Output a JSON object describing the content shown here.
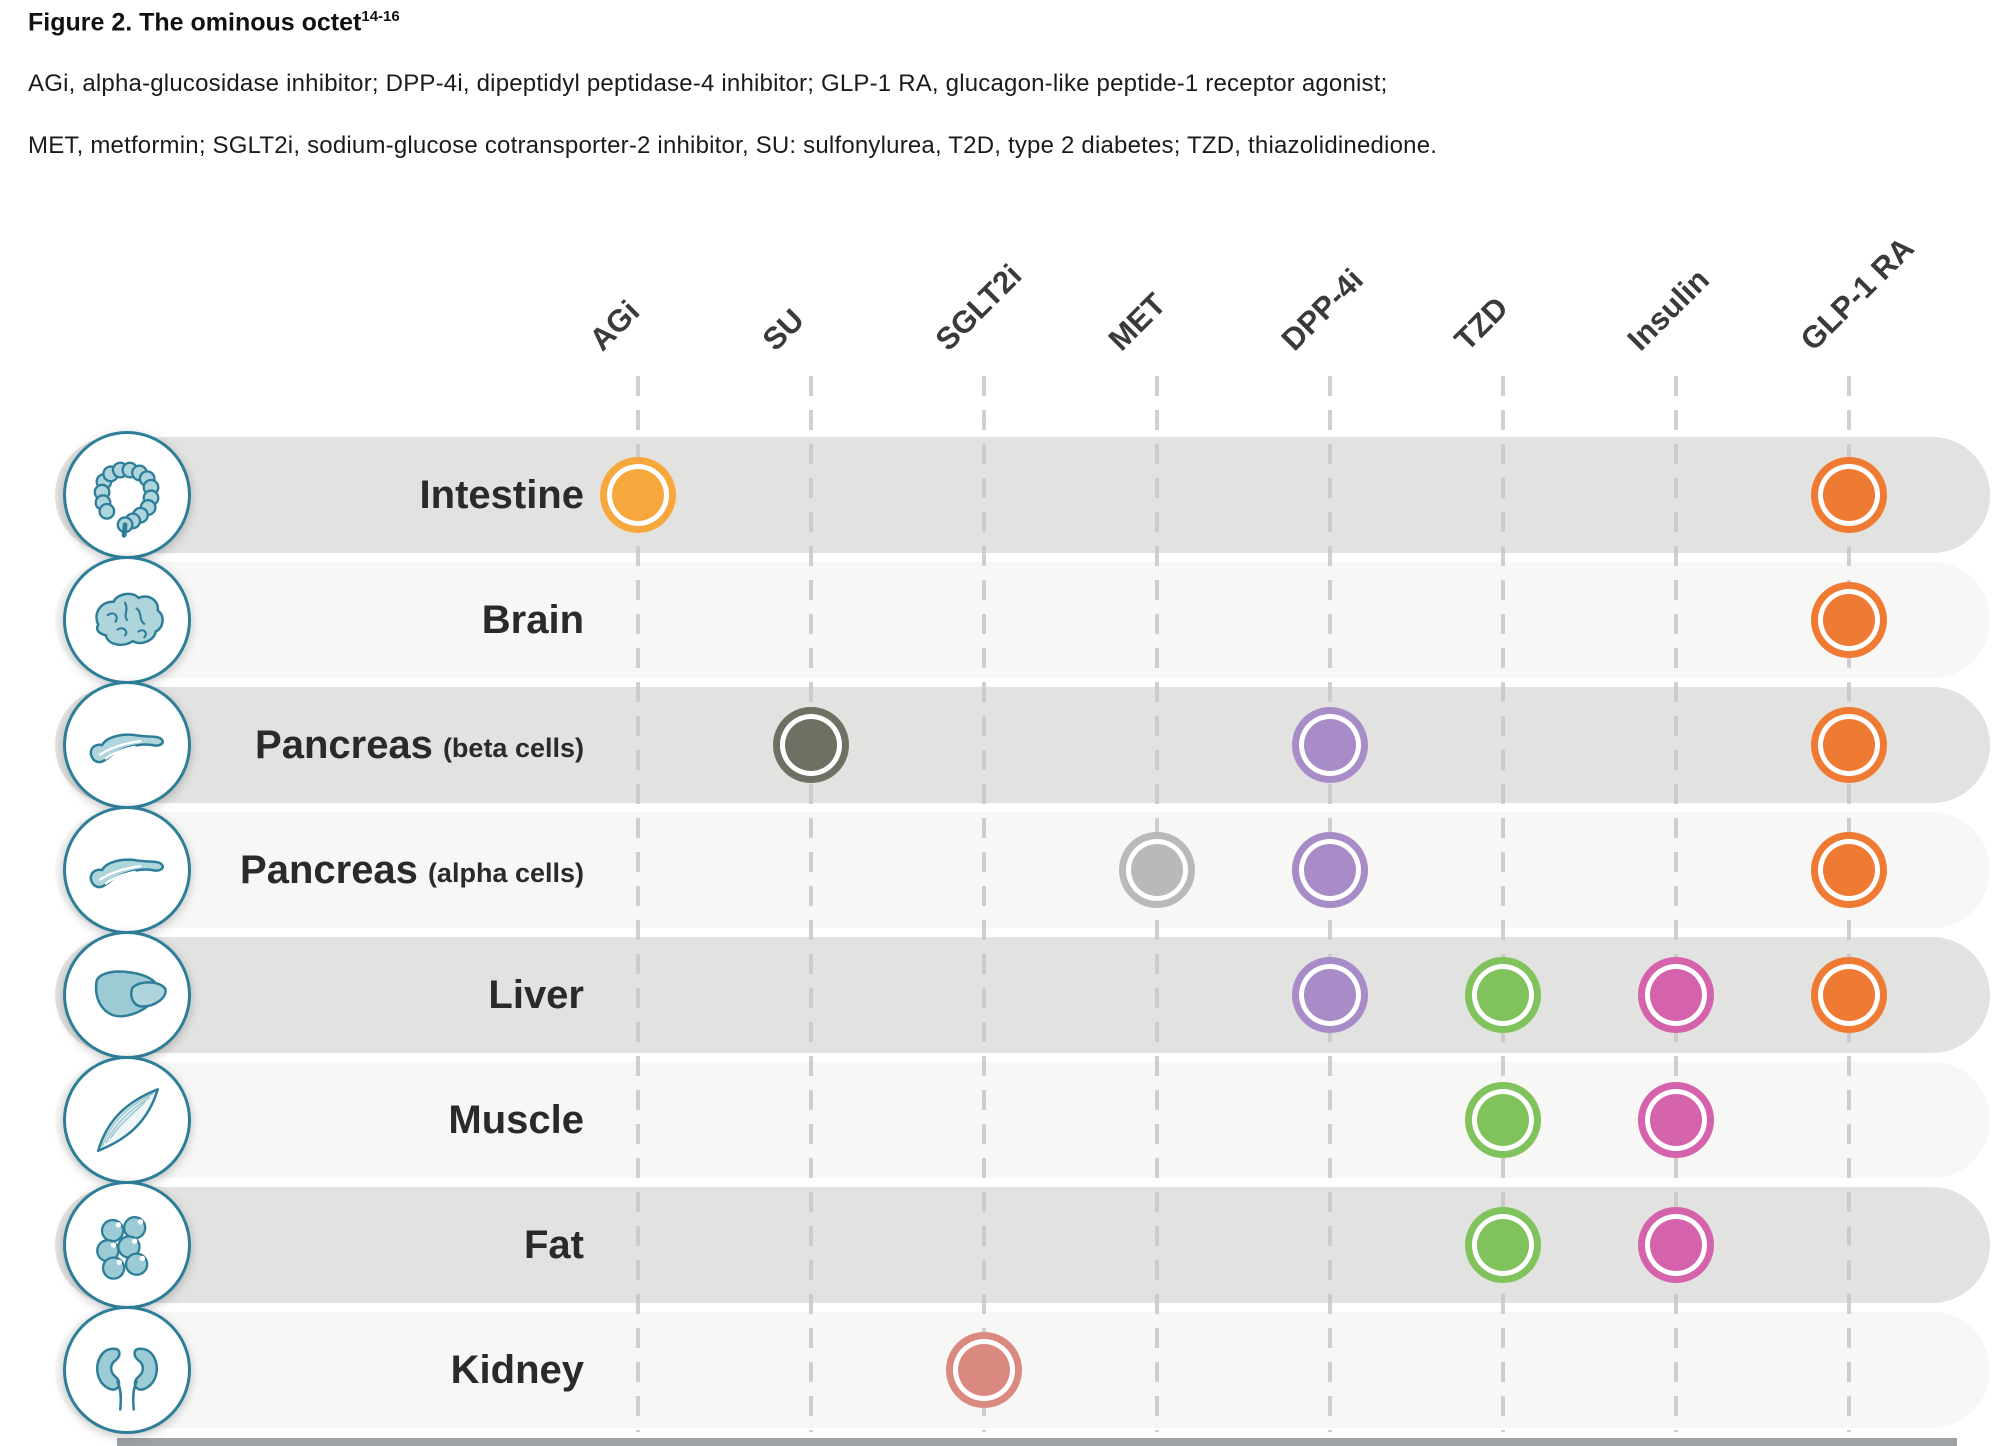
{
  "header": {
    "title": "Figure 2. The ominous octet",
    "reference": "14-16",
    "abbrev_line1": "AGi, alpha-glucosidase inhibitor; DPP-4i, dipeptidyl peptidase-4 inhibitor; GLP-1 RA, glucagon-like peptide-1 receptor agonist;",
    "abbrev_line2": "MET, metformin; SGLT2i, sodium-glucose cotransporter-2 inhibitor, SU: sulfonylurea, T2D, type 2 diabetes; TZD, thiazolidinedione."
  },
  "chart_data": {
    "type": "table",
    "title": "Figure 2. The ominous octet",
    "columns": [
      "AGi",
      "SU",
      "SGLT2i",
      "MET",
      "DPP-4i",
      "TZD",
      "Insulin",
      "GLP-1 RA"
    ],
    "rows": [
      {
        "organ": "Intestine",
        "sub": "",
        "icon": "intestine-icon",
        "hits": {
          "AGi": "amber",
          "GLP-1 RA": "orange"
        }
      },
      {
        "organ": "Brain",
        "sub": "",
        "icon": "brain-icon",
        "hits": {
          "GLP-1 RA": "orange"
        }
      },
      {
        "organ": "Pancreas",
        "sub": "(beta cells)",
        "icon": "pancreas-icon",
        "hits": {
          "SU": "olive",
          "DPP-4i": "purple",
          "GLP-1 RA": "orange"
        }
      },
      {
        "organ": "Pancreas",
        "sub": "(alpha cells)",
        "icon": "pancreas-icon",
        "hits": {
          "MET": "silver",
          "DPP-4i": "purple",
          "GLP-1 RA": "orange"
        }
      },
      {
        "organ": "Liver",
        "sub": "",
        "icon": "liver-icon",
        "hits": {
          "DPP-4i": "purple",
          "TZD": "green",
          "Insulin": "pink",
          "GLP-1 RA": "orange"
        }
      },
      {
        "organ": "Muscle",
        "sub": "",
        "icon": "muscle-icon",
        "hits": {
          "TZD": "green",
          "Insulin": "pink"
        }
      },
      {
        "organ": "Fat",
        "sub": "",
        "icon": "fat-icon",
        "hits": {
          "TZD": "green",
          "Insulin": "pink"
        }
      },
      {
        "organ": "Kidney",
        "sub": "",
        "icon": "kidney-icon",
        "hits": {
          "SGLT2i": "salmon"
        }
      }
    ],
    "dot_colors": {
      "amber": "#F6A83C",
      "orange": "#EF7A33",
      "olive": "#706F63",
      "purple": "#A78CC8",
      "silver": "#B9B9BB",
      "green": "#80C25C",
      "pink": "#D563AB",
      "salmon": "#D98980"
    },
    "band_colors": {
      "dark": "#e2e2e1",
      "light": "#f7f7f6"
    },
    "icon_palette": {
      "stroke": "#2e7e99",
      "fill": "#aed4dc",
      "fill_deep": "#9ccbd6"
    },
    "legend_position": "none",
    "grid": "dashed-vertical"
  }
}
